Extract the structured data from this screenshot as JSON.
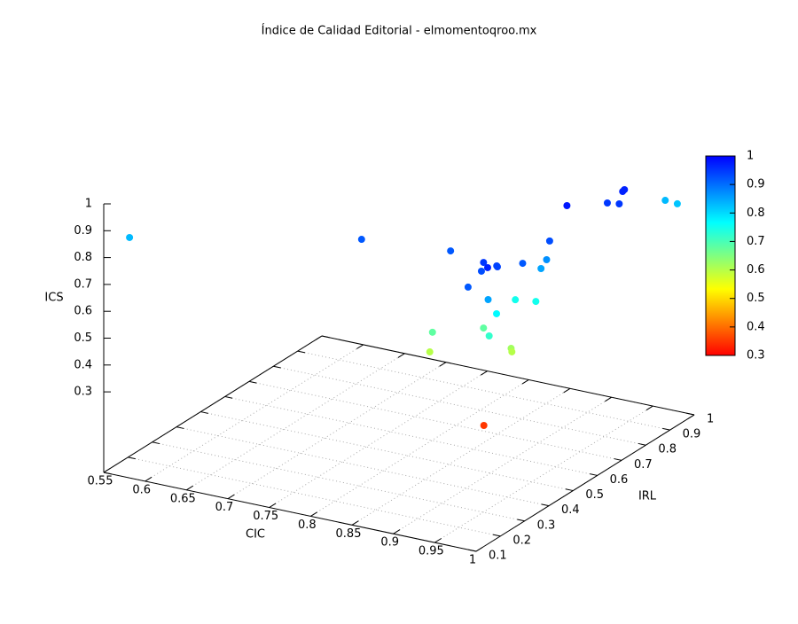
{
  "chart_data": {
    "type": "scatter3d",
    "title": "Índice de Calidad Editorial - elmomentoqroo.mx",
    "xlabel": "CIC",
    "ylabel": "IRL",
    "zlabel": "ICS",
    "xlim": [
      0.55,
      1
    ],
    "ylim": [
      0.1,
      1
    ],
    "zlim": [
      0,
      1
    ],
    "xticks": [
      0.55,
      0.6,
      0.65,
      0.7,
      0.75,
      0.8,
      0.85,
      0.9,
      0.95,
      1
    ],
    "yticks": [
      0.1,
      0.2,
      0.3,
      0.4,
      0.5,
      0.6,
      0.7,
      0.8,
      0.9,
      1
    ],
    "zticks": [
      0.3,
      0.4,
      0.5,
      0.6,
      0.7,
      0.8,
      0.9,
      1
    ],
    "cblim": [
      0.3,
      1
    ],
    "cbticks": [
      0.3,
      0.4,
      0.5,
      0.6,
      0.7,
      0.8,
      0.9,
      1
    ],
    "palette": [
      "#ff0000",
      "#ff8000",
      "#ffff00",
      "#80ff80",
      "#00ffff",
      "#0080ff",
      "#0000ff"
    ],
    "grid": true,
    "x": [
      0.556,
      0.803,
      0.9,
      0.958,
      0.977,
      0.961,
      0.971,
      0.973,
      0.968,
      0.983,
      0.979,
      0.98,
      0.98,
      0.977,
      0.974,
      0.963,
      0.984,
      0.948,
      0.98,
      0.908,
      0.903,
      0.979,
      0.977,
      0.961,
      0.963,
      0.984,
      0.996,
      0.989,
      0.988,
      0.986,
      0.998
    ],
    "y": [
      0.186,
      0.3,
      0.336,
      0.274,
      0.226,
      0.255,
      0.284,
      0.28,
      0.176,
      0.35,
      0.475,
      0.459,
      0.436,
      0.228,
      0.273,
      0.388,
      0.401,
      0.308,
      0.222,
      0.234,
      0.24,
      0.316,
      0.326,
      0.265,
      0.601,
      0.696,
      0.704,
      0.742,
      0.753,
      0.928,
      0.937
    ],
    "z": [
      0.83,
      0.92,
      0.92,
      0.95,
      0.97,
      0.93,
      0.94,
      0.94,
      0.92,
      0.92,
      0.93,
      0.87,
      0.85,
      0.85,
      0.77,
      0.75,
      0.75,
      0.68,
      0.72,
      0.68,
      0.6,
      0.62,
      0.6,
      0.35,
      0.98,
      0.95,
      0.95,
      0.97,
      0.97,
      0.83,
      0.82
    ]
  }
}
